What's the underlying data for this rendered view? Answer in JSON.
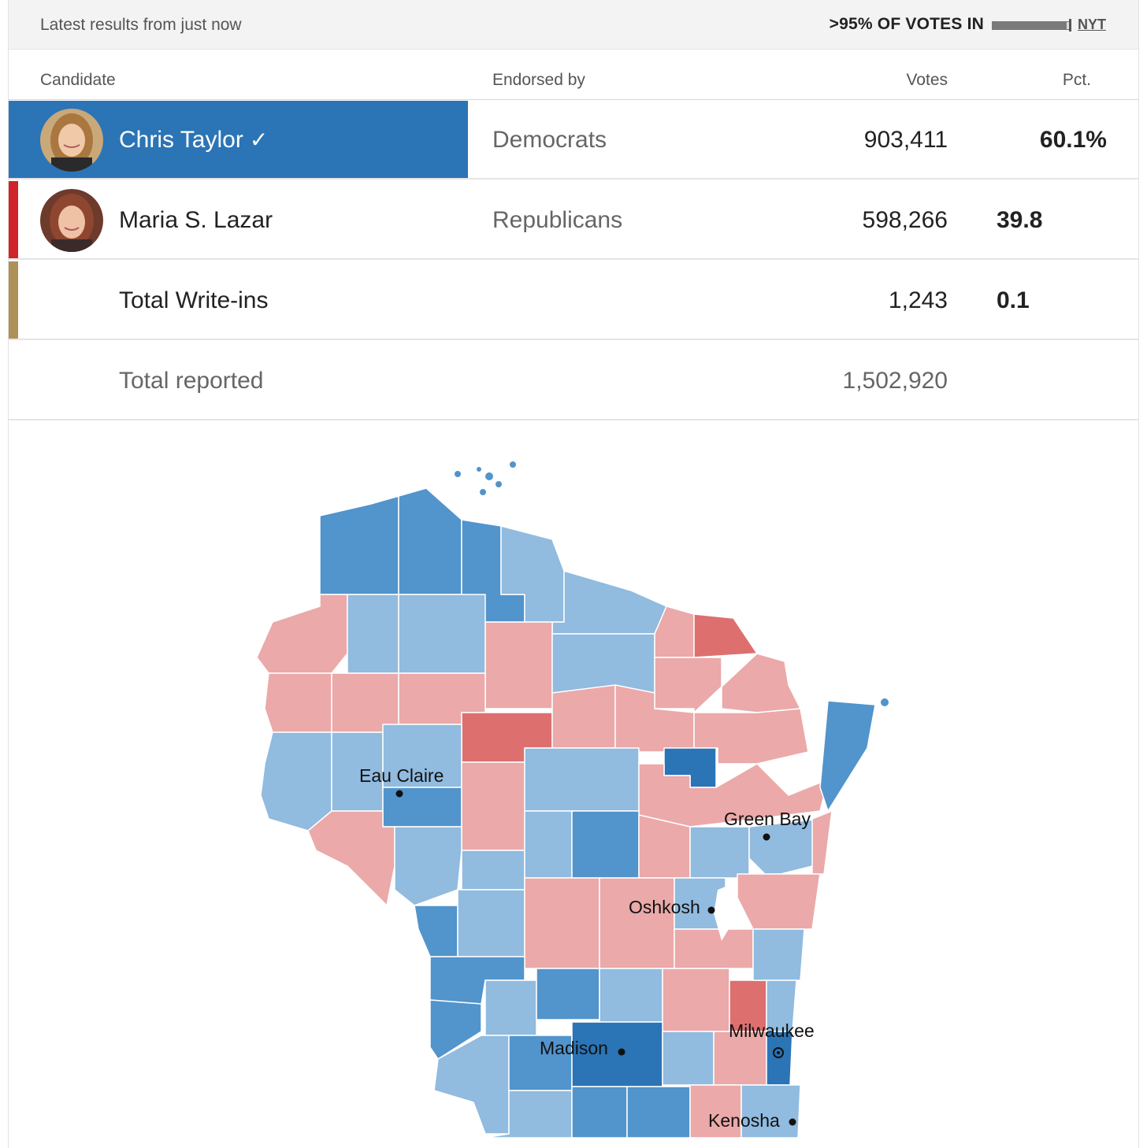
{
  "header": {
    "latest_text": "Latest results from just now",
    "votes_in_text": ">95% OF VOTES IN",
    "reporting_fraction": 0.96,
    "source_label": "NYT"
  },
  "columns": {
    "candidate": "Candidate",
    "endorsed": "Endorsed by",
    "votes": "Votes",
    "pct": "Pct."
  },
  "candidates": [
    {
      "name": "Chris Taylor",
      "winner_mark": "✓",
      "endorsed": "Democrats",
      "votes": "903,411",
      "pct": "60.1%",
      "color": "#2b74b6"
    },
    {
      "name": "Maria S. Lazar",
      "endorsed": "Republicans",
      "votes": "598,266",
      "pct": "39.8",
      "color": "#d0242b"
    },
    {
      "name": "Total Write-ins",
      "endorsed": "",
      "votes": "1,243",
      "pct": "0.1",
      "color": "#ae9159"
    }
  ],
  "total": {
    "label": "Total reported",
    "votes": "1,502,920"
  },
  "map": {
    "cities": [
      "Eau Claire",
      "Green Bay",
      "Oshkosh",
      "Madison",
      "Milwaukee",
      "Kenosha"
    ],
    "colors": {
      "dem_light": "#91bbdf",
      "dem_mid": "#5294cc",
      "dem_dark": "#2b74b6",
      "rep_light": "#eba9a9",
      "rep_mid": "#de6f6f"
    }
  }
}
